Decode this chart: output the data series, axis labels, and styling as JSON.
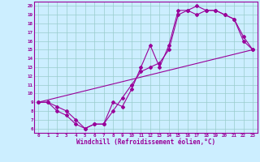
{
  "xlabel": "Windchill (Refroidissement éolien,°C)",
  "bg_color": "#cceeff",
  "line_color": "#990099",
  "grid_color": "#99cccc",
  "xlim": [
    -0.5,
    23.5
  ],
  "ylim": [
    5.5,
    20.5
  ],
  "yticks": [
    6,
    7,
    8,
    9,
    10,
    11,
    12,
    13,
    14,
    15,
    16,
    17,
    18,
    19,
    20
  ],
  "xticks": [
    0,
    1,
    2,
    3,
    4,
    5,
    6,
    7,
    8,
    9,
    10,
    11,
    12,
    13,
    14,
    15,
    16,
    17,
    18,
    19,
    20,
    21,
    22,
    23
  ],
  "line1_x": [
    0,
    1,
    2,
    3,
    4,
    5,
    6,
    7,
    8,
    9,
    10,
    11,
    12,
    13,
    14,
    15,
    16,
    17,
    18,
    19,
    20,
    21,
    22,
    23
  ],
  "line1_y": [
    9,
    9,
    8,
    7.5,
    6.5,
    6,
    6.5,
    6.5,
    9,
    8.5,
    10.5,
    13,
    15.5,
    13,
    15.5,
    19.5,
    19.5,
    20,
    19.5,
    19.5,
    19,
    18.5,
    16,
    15
  ],
  "line2_x": [
    0,
    1,
    2,
    3,
    4,
    5,
    6,
    7,
    8,
    9,
    10,
    11,
    12,
    13,
    14,
    15,
    16,
    17,
    18,
    19,
    20,
    21,
    22,
    23
  ],
  "line2_y": [
    9,
    9,
    8.5,
    8,
    7,
    6,
    6.5,
    6.5,
    8,
    9.5,
    11,
    12.5,
    13,
    13.5,
    15,
    19,
    19.5,
    19,
    19.5,
    19.5,
    19,
    18.5,
    16.5,
    15
  ],
  "line3_x": [
    0,
    23
  ],
  "line3_y": [
    9,
    15
  ]
}
